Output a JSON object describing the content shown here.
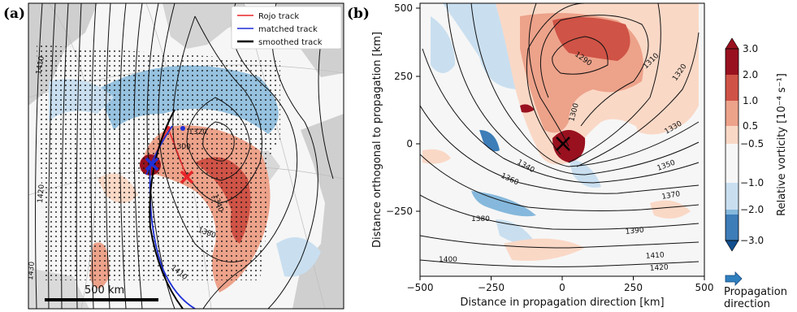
{
  "panels": {
    "a": {
      "label": "(a)",
      "legend": [
        "Rojo track",
        "matched track",
        "smoothed track"
      ],
      "legend_colors": [
        "#e8262a",
        "#1f2fd6",
        "#000000"
      ],
      "scale_bar": "500 km",
      "contour_labels": [
        "1410",
        "1420",
        "1430",
        "1320",
        "1300",
        "1340",
        "1380",
        "1410"
      ]
    },
    "b": {
      "label": "(b)",
      "xlabel": "Distance in propagation direction [km]",
      "ylabel": "Distance orthogonal to propagation [km]",
      "xticks": [
        "−500",
        "−250",
        "0",
        "250",
        "500"
      ],
      "yticks": [
        "500",
        "250",
        "0",
        "−250"
      ],
      "contour_labels": [
        "1290",
        "1310",
        "1320",
        "1300",
        "1330",
        "1340",
        "1350",
        "1360",
        "1370",
        "1380",
        "1390",
        "1400",
        "1410",
        "1420"
      ]
    },
    "colorbar": {
      "label": "Relative vorticity [10⁻⁴ s⁻¹]",
      "ticks": [
        "3.0",
        "2.0",
        "1.0",
        "0.5",
        "−0.5",
        "−1.0",
        "−2.0",
        "−3.0"
      ],
      "colors": [
        "#99111f",
        "#cf5346",
        "#eda28a",
        "#fad8c6",
        "#f6f6f6",
        "#c9dff0",
        "#85b8dc",
        "#3d7db8",
        "#114f8f"
      ]
    },
    "arrow_label": [
      "Propagation",
      "direction"
    ]
  }
}
